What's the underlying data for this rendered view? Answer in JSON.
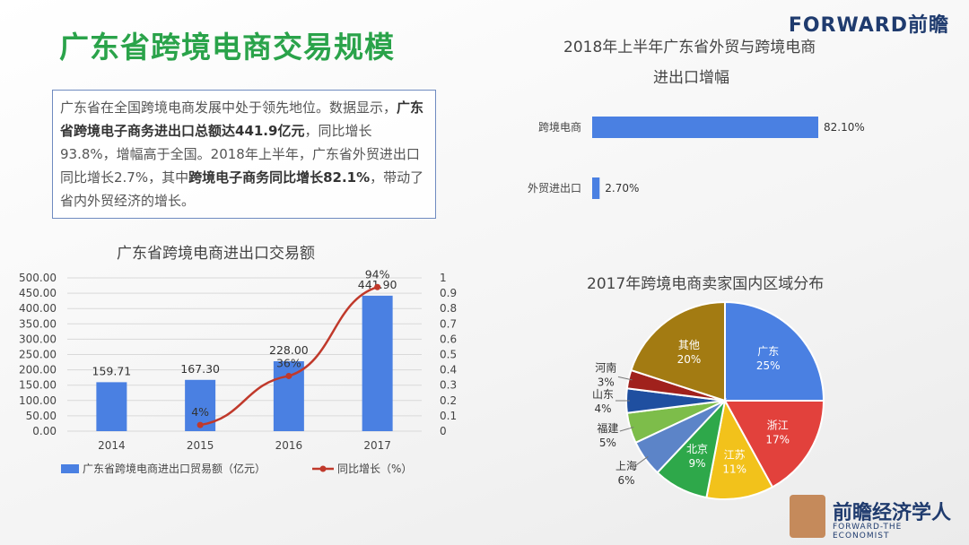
{
  "header": {
    "title": "广东省跨境电商交易规模",
    "logo": "FORWARD前瞻"
  },
  "summary": {
    "p1": "广东省在全国跨境电商发展中处于领先地位。数据显示，",
    "b1": "广东省跨境电子商务进出口总额达441.9亿元",
    "p2": "，同比增长93.8%，增幅高于全国。2018年上半年，广东省外贸进出口同比增长2.7%，其中",
    "b2": "跨境电子商务同比增长82.1%",
    "p3": "，带动了省内外贸经济的增长。"
  },
  "brand": {
    "name": "前瞻经济学人",
    "sub": "FORWARD-THE ECONOMIST"
  },
  "chart_data": [
    {
      "type": "bar",
      "title": "广东省跨境电商进出口交易额",
      "categories": [
        "2014",
        "2015",
        "2016",
        "2017"
      ],
      "series": [
        {
          "name": "广东省跨境电商进出口贸易额（亿元）",
          "values": [
            159.71,
            167.3,
            228.0,
            441.9
          ],
          "labels": [
            "159.71",
            "167.30",
            "228.00",
            "441.90"
          ],
          "color": "#4a80e2",
          "axis": "left"
        },
        {
          "name": "同比增长（%）",
          "type": "line",
          "values": [
            null,
            0.04,
            0.36,
            0.94
          ],
          "labels": [
            "",
            "4%",
            "36%",
            "94%"
          ],
          "color": "#c0392b",
          "axis": "right"
        }
      ],
      "ylim": [
        0,
        500
      ],
      "yticks": [
        "500.00",
        "450.00",
        "400.00",
        "350.00",
        "300.00",
        "250.00",
        "200.00",
        "150.00",
        "100.00",
        "50.00",
        "0.00"
      ],
      "y2lim": [
        0,
        1
      ],
      "y2ticks": [
        "1",
        "0.9",
        "0.8",
        "0.7",
        "0.6",
        "0.5",
        "0.4",
        "0.3",
        "0.2",
        "0.1",
        "0"
      ],
      "legend_position": "bottom"
    },
    {
      "type": "bar",
      "orientation": "horizontal",
      "title_line1": "2018年上半年广东省外贸与跨境电商",
      "title_line2": "进出口增幅",
      "categories": [
        "跨境电商",
        "外贸进出口"
      ],
      "values": [
        82.1,
        2.7
      ],
      "labels": [
        "82.10%",
        "2.70%"
      ],
      "color": "#4a80e2"
    },
    {
      "type": "pie",
      "title": "2017年跨境电商卖家国内区域分布",
      "slices": [
        {
          "name": "广东",
          "value": 25,
          "label": "25%",
          "color": "#4a80e2"
        },
        {
          "name": "浙江",
          "value": 17,
          "label": "17%",
          "color": "#e2413c"
        },
        {
          "name": "江苏",
          "value": 11,
          "label": "11%",
          "color": "#f2c21b"
        },
        {
          "name": "北京",
          "value": 9,
          "label": "9%",
          "color": "#2ea84a"
        },
        {
          "name": "上海",
          "value": 6,
          "label": "6%",
          "color": "#5c84c8"
        },
        {
          "name": "福建",
          "value": 5,
          "label": "5%",
          "color": "#7dbd4a"
        },
        {
          "name": "山东",
          "value": 4,
          "label": "4%",
          "color": "#1f4fa0"
        },
        {
          "name": "河南",
          "value": 3,
          "label": "3%",
          "color": "#a0211c"
        },
        {
          "name": "其他",
          "value": 20,
          "label": "20%",
          "color": "#a37b12"
        }
      ]
    }
  ]
}
